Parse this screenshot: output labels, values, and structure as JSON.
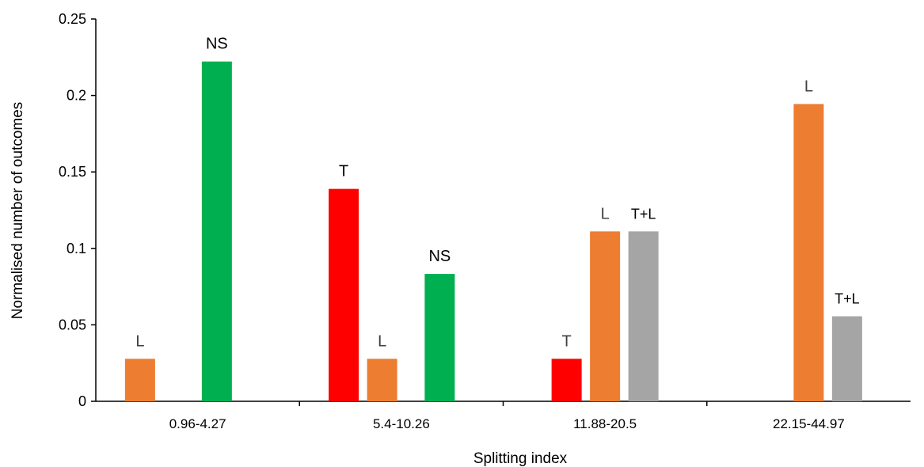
{
  "chart_data": {
    "type": "bar",
    "xlabel": "Splitting index",
    "ylabel": "Normalised number of outcomes",
    "ylim": [
      0,
      0.25
    ],
    "yticks": [
      0,
      0.05,
      0.1,
      0.15,
      0.2,
      0.25
    ],
    "ytick_labels": [
      "0",
      "0.05",
      "0.1",
      "0.15",
      "0.2",
      "0.25"
    ],
    "grid": false,
    "categories": [
      "0.96-4.27",
      "5.4-10.26",
      "11.88-20.5",
      "22.15-44.97"
    ],
    "groups": [
      {
        "category": "0.96-4.27",
        "bars": [
          {
            "label": "L",
            "value": 0.0278,
            "color": "#ED7D31"
          },
          {
            "label": "NS",
            "value": 0.2222,
            "color": "#00B050"
          }
        ]
      },
      {
        "category": "5.4-10.26",
        "bars": [
          {
            "label": "T",
            "value": 0.1389,
            "color": "#FF0000"
          },
          {
            "label": "L",
            "value": 0.0278,
            "color": "#ED7D31"
          },
          {
            "label": "NS",
            "value": 0.0833,
            "color": "#00B050"
          }
        ]
      },
      {
        "category": "11.88-20.5",
        "bars": [
          {
            "label": "T",
            "value": 0.0278,
            "color": "#FF0000"
          },
          {
            "label": "L",
            "value": 0.1111,
            "color": "#ED7D31"
          },
          {
            "label": "T+L",
            "value": 0.1111,
            "color": "#A5A5A5"
          }
        ]
      },
      {
        "category": "22.15-44.97",
        "bars": [
          {
            "label": "L",
            "value": 0.1944,
            "color": "#ED7D31"
          },
          {
            "label": "T+L",
            "value": 0.0556,
            "color": "#A5A5A5"
          }
        ]
      }
    ]
  }
}
